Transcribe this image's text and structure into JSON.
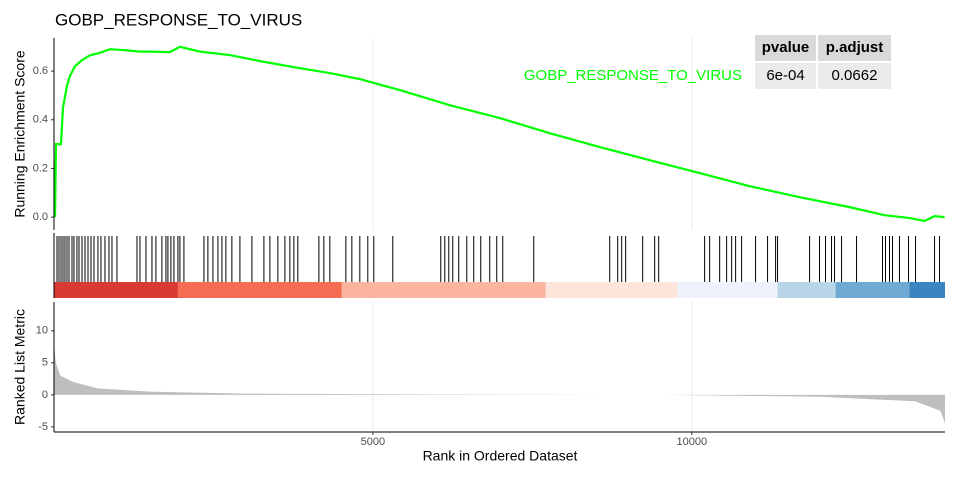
{
  "chart_data": {
    "type": "gsea",
    "title": "GOBP_RESPONSE_TO_VIRUS",
    "xlabel": "Rank in Ordered Dataset",
    "xlim": [
      0,
      13970
    ],
    "xticks": [
      5000,
      10000
    ],
    "grid": true,
    "ylabel": "Running Enrichment Score",
    "ylim": [
      -0.053,
      0.736
    ],
    "yticks": [
      {
        "value": 0,
        "label": "0.0"
      },
      0.2,
      0.4,
      0.6
    ],
    "x": [
      16,
      31,
      110,
      141,
      204,
      250,
      329,
      439,
      564,
      721,
      877,
      1112,
      1347,
      1504,
      1818,
      1974,
      2288,
      2758,
      3228,
      3855,
      4325,
      4795,
      5422,
      6205,
      6989,
      7772,
      8556,
      9340,
      10123,
      10906,
      11690,
      12473,
      13022,
      13414,
      13649,
      13806,
      13963
    ],
    "series": [
      {
        "name": "GOBP_RESPONSE_TO_VIRUS",
        "color": "#00ff00",
        "values": [
          0.0,
          0.3,
          0.3,
          0.45,
          0.54,
          0.58,
          0.62,
          0.645,
          0.665,
          0.675,
          0.69,
          0.686,
          0.68,
          0.68,
          0.678,
          0.7,
          0.68,
          0.666,
          0.641,
          0.612,
          0.592,
          0.567,
          0.522,
          0.46,
          0.407,
          0.345,
          0.288,
          0.234,
          0.181,
          0.127,
          0.082,
          0.041,
          0.008,
          -0.004,
          -0.016,
          0.004,
          0.0
        ]
      }
    ],
    "hits": [
      47,
      78,
      110,
      141,
      172,
      204,
      235,
      282,
      313,
      360,
      392,
      439,
      486,
      533,
      580,
      627,
      689,
      736,
      799,
      862,
      909,
      987,
      1301,
      1348,
      1442,
      1536,
      1598,
      1692,
      1755,
      1786,
      1833,
      1880,
      1943,
      1974,
      2037,
      2351,
      2413,
      2492,
      2570,
      2633,
      2695,
      2789,
      2915,
      3103,
      3291,
      3385,
      3510,
      3620,
      3698,
      3761,
      3823,
      4153,
      4231,
      4325,
      4576,
      4670,
      4795,
      4920,
      5014,
      5312,
      6064,
      6127,
      6190,
      6252,
      6346,
      6472,
      6581,
      6691,
      6832,
      6942,
      7036,
      7522,
      8713,
      8838,
      8901,
      8963,
      9230,
      9418,
      9481,
      10201,
      10280,
      10437,
      10546,
      10625,
      10687,
      10781,
      11000,
      11188,
      11314,
      11345,
      11847,
      12003,
      12097,
      12191,
      12238,
      12348,
      12583,
      12990,
      13037,
      13100,
      13147,
      13256,
      13398,
      13508,
      13806,
      13884
    ],
    "hit_color": "#000000",
    "bands": [
      {
        "start": 0,
        "end": 1943,
        "color": "#d93a32"
      },
      {
        "start": 1943,
        "end": 4513,
        "color": "#f46d52"
      },
      {
        "start": 4513,
        "end": 7710,
        "color": "#fbb4a0"
      },
      {
        "start": 7710,
        "end": 9778,
        "color": "#fde5dc"
      },
      {
        "start": 9778,
        "end": 11345,
        "color": "#eef3fb"
      },
      {
        "start": 11345,
        "end": 12254,
        "color": "#b9d6e8"
      },
      {
        "start": 12254,
        "end": 13414,
        "color": "#6eaad4"
      },
      {
        "start": 13414,
        "end": 13970,
        "color": "#3a85c0"
      }
    ],
    "metric": {
      "ylabel": "Ranked List Metric",
      "ylim": [
        -5.8,
        14.5
      ],
      "yticks": [
        -5,
        0,
        5,
        10
      ],
      "color": "#bebebe",
      "x": [
        1,
        30,
        100,
        300,
        700,
        1500,
        3000,
        6000,
        8800,
        9600,
        12000,
        13500,
        13900,
        13970
      ],
      "values": [
        8,
        5,
        3,
        2,
        1,
        0.5,
        0.2,
        0.05,
        0,
        0,
        -0.3,
        -1,
        -2.5,
        -4.5
      ]
    },
    "table": {
      "columns": [
        "pvalue",
        "p.adjust"
      ],
      "rows": [
        {
          "name": "GOBP_RESPONSE_TO_VIRUS",
          "values": [
            "6e-04",
            "0.0662"
          ]
        }
      ]
    }
  }
}
